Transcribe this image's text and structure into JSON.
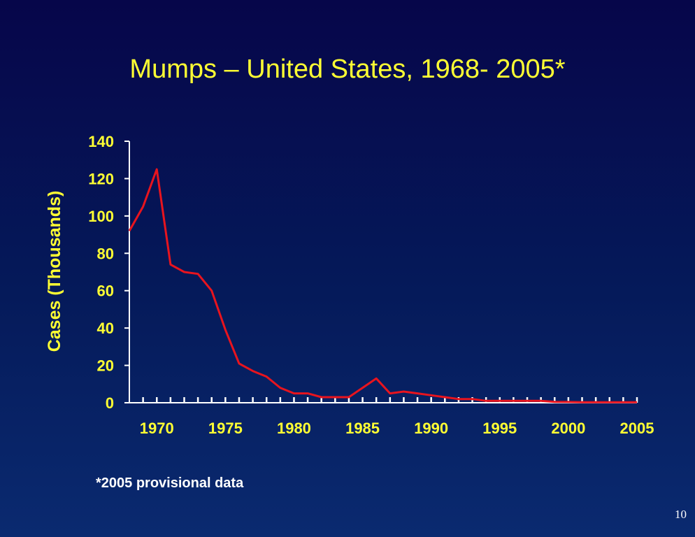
{
  "slide": {
    "title": "Mumps – United States, 1968- 2005*",
    "footnote": "*2005 provisional data",
    "page_number": "10"
  },
  "colors": {
    "title": "#ffff33",
    "axis_labels": "#ffff33",
    "axis_lines": "#ffffff",
    "series": "#e8141e"
  },
  "chart_data": {
    "type": "line",
    "title": "Mumps – United States, 1968- 2005*",
    "xlabel": "",
    "ylabel": "Cases (Thousands)",
    "xlim": [
      1968,
      2005
    ],
    "ylim": [
      0,
      140
    ],
    "x_ticks": [
      1970,
      1975,
      1980,
      1985,
      1990,
      1995,
      2000,
      2005
    ],
    "y_ticks": [
      0,
      20,
      40,
      60,
      80,
      100,
      120,
      140
    ],
    "grid": false,
    "legend": "none",
    "series": [
      {
        "x": [
          1968,
          1969,
          1970,
          1971,
          1972,
          1973,
          1974,
          1975,
          1976,
          1977,
          1978,
          1979,
          1980,
          1981,
          1982,
          1983,
          1984,
          1985,
          1986,
          1987,
          1988,
          1989,
          1990,
          1991,
          1992,
          1993,
          1994,
          1995,
          1996,
          1997,
          1998,
          1999,
          2000,
          2001,
          2002,
          2003,
          2004,
          2005
        ],
        "values": [
          92,
          105,
          125,
          74,
          70,
          69,
          60,
          39,
          21,
          17,
          14,
          8,
          5,
          5,
          3,
          3,
          3,
          8,
          13,
          5,
          6,
          5,
          4,
          3,
          2,
          2,
          1,
          1,
          1,
          1,
          1,
          0.5,
          0.4,
          0.3,
          0.3,
          0.3,
          0.3,
          0.3
        ]
      }
    ]
  }
}
